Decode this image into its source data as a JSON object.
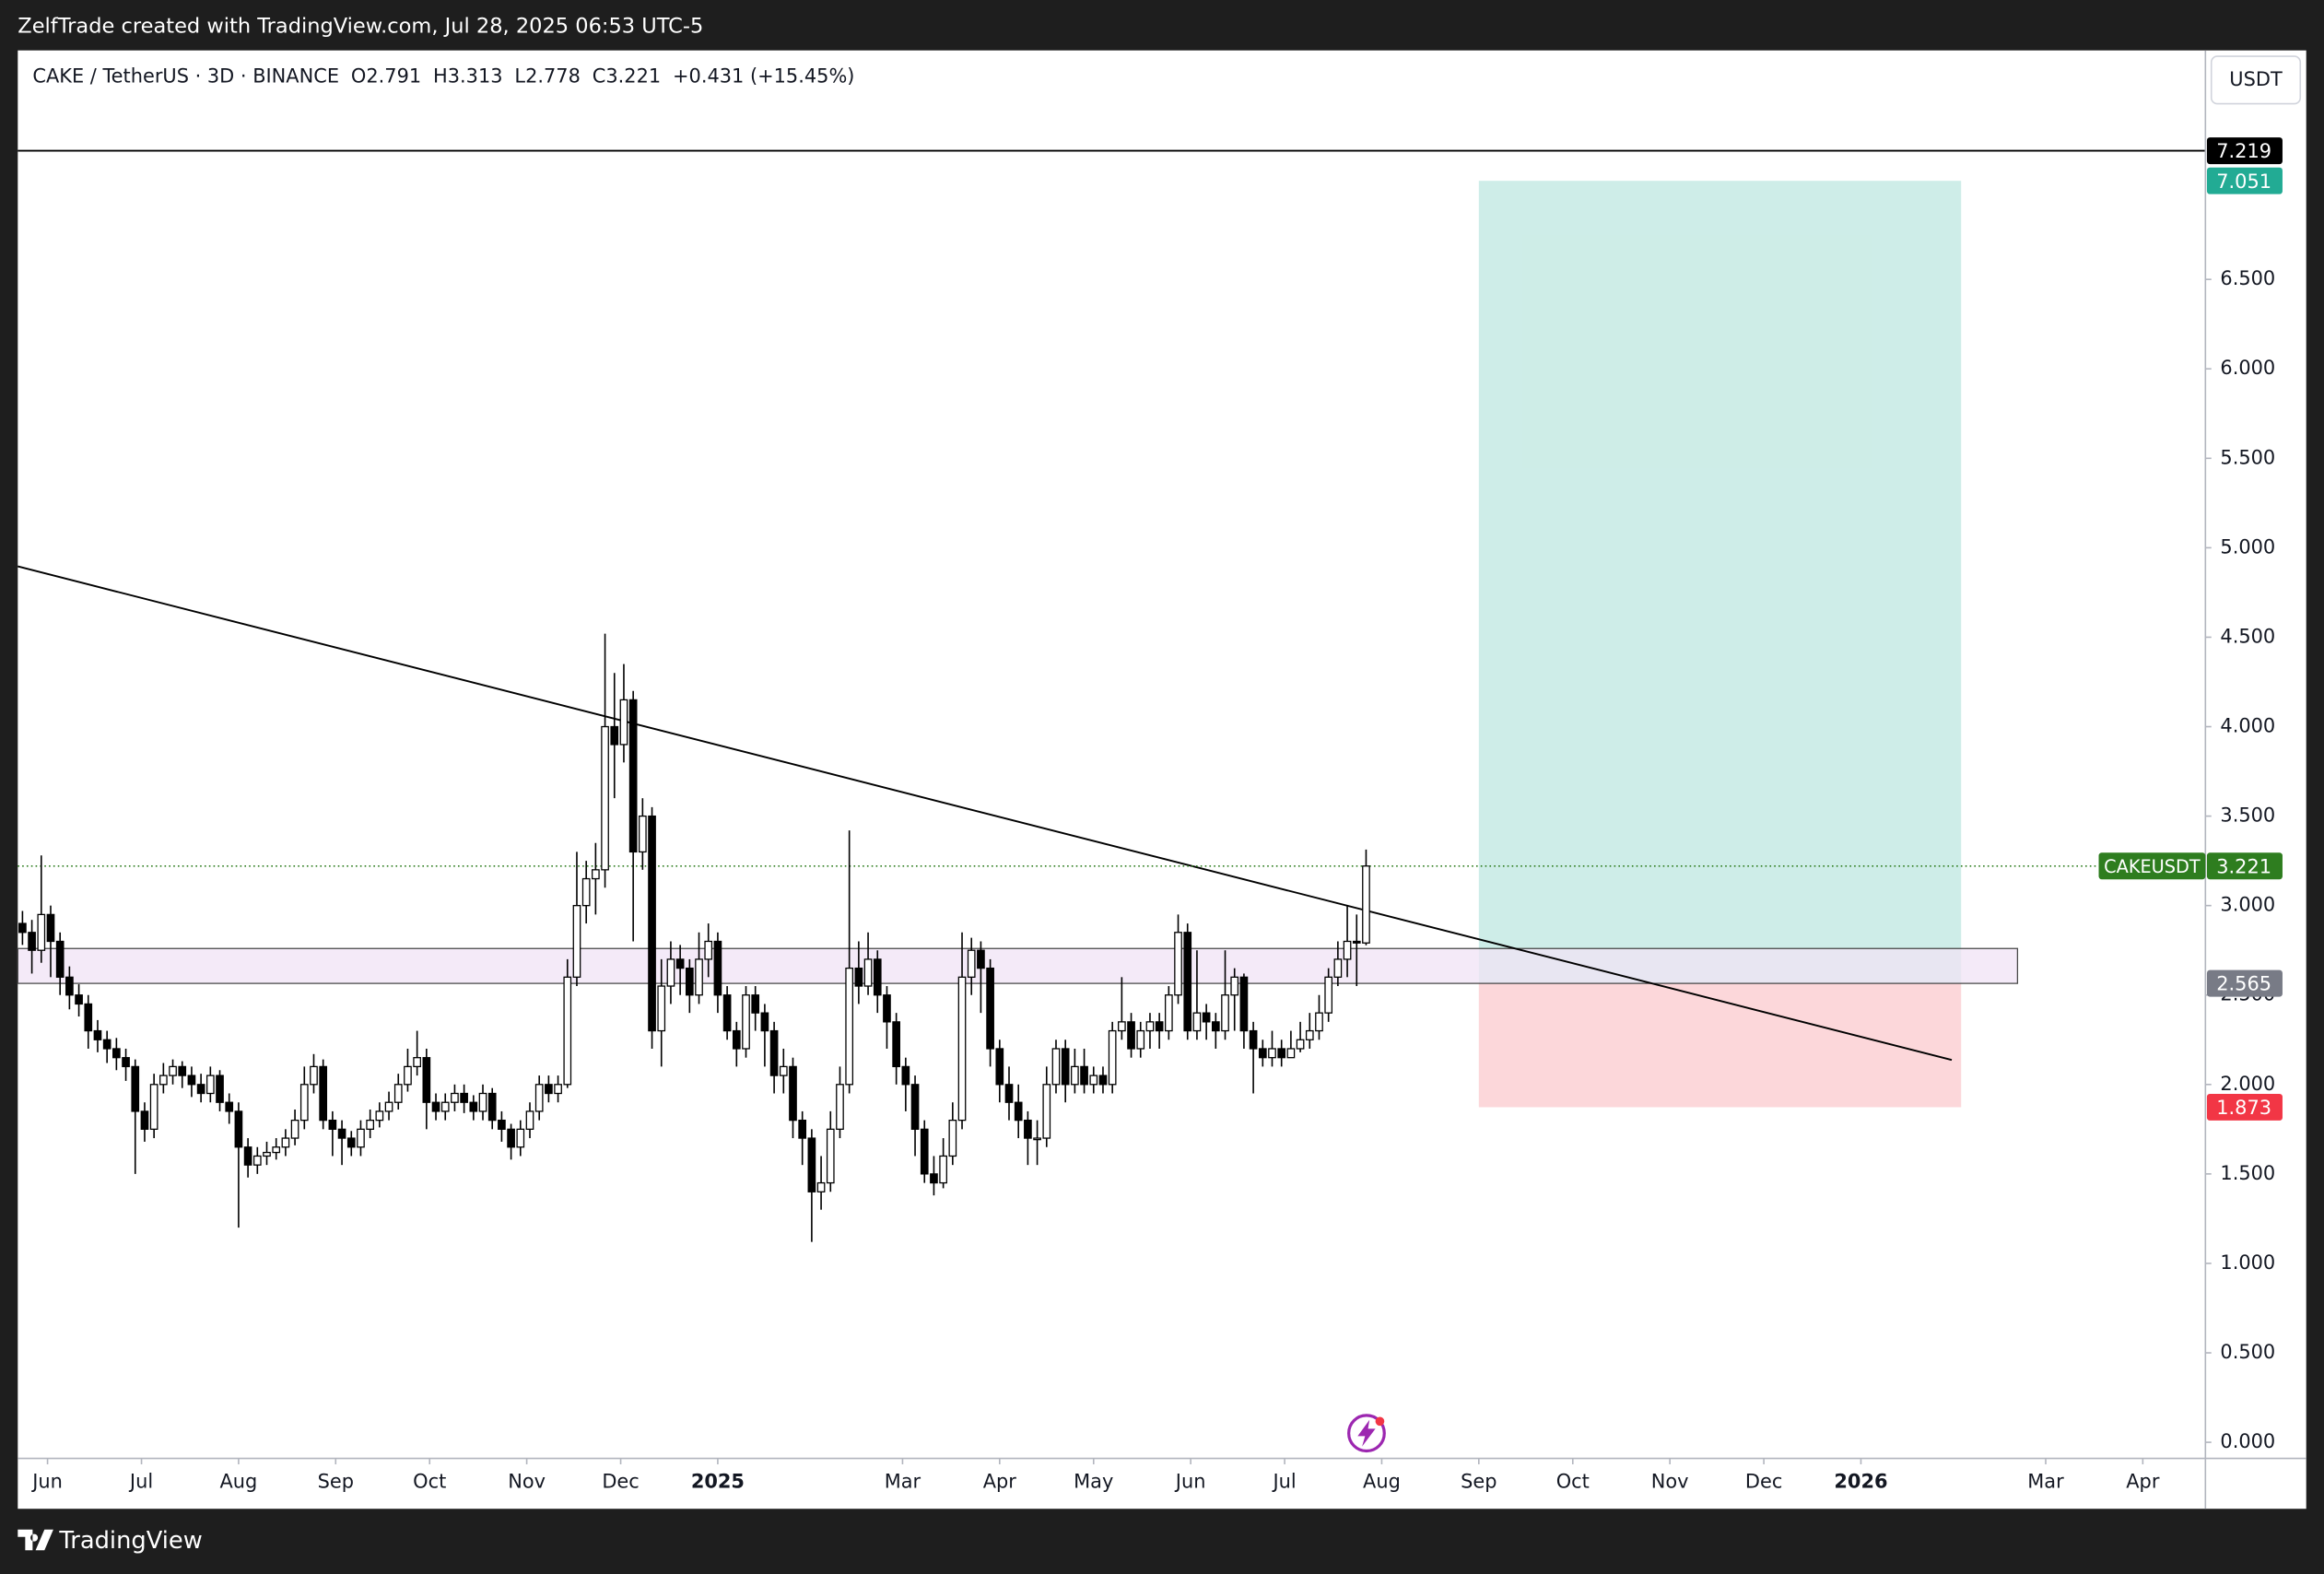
{
  "top_bar": "ZelfTrade created with TradingView.com, Jul 28, 2025 06:53 UTC-5",
  "footer": "TradingView",
  "chart_data": {
    "type": "candlestick",
    "title": "CAKE / TetherUS · 3D · BINANCE",
    "ohlc_letters": [
      "O",
      "H",
      "L",
      "C"
    ],
    "change_label": "+0.431 (+15.45%)",
    "currency": "USDT",
    "up_color": "#ffffff",
    "down_color": "#000000",
    "wick_color": "#000000",
    "x": [
      -8,
      -5,
      -2,
      1,
      4,
      7,
      10,
      13,
      16,
      19,
      22,
      25,
      28,
      31,
      34,
      37,
      40,
      43,
      46,
      49,
      52,
      55,
      58,
      61,
      64,
      67,
      70,
      73,
      76,
      79,
      82,
      85,
      88,
      91,
      94,
      97,
      100,
      103,
      106,
      109,
      112,
      115,
      118,
      121,
      124,
      127,
      130,
      133,
      136,
      139,
      142,
      145,
      148,
      151,
      154,
      157,
      160,
      163,
      166,
      169,
      172,
      175,
      178,
      181,
      184,
      187,
      190,
      193,
      196,
      199,
      202,
      205,
      208,
      211,
      214,
      217,
      220,
      223,
      226,
      229,
      232,
      235,
      238,
      241,
      244,
      247,
      250,
      253,
      256,
      259,
      262,
      265,
      268,
      271,
      274,
      277,
      280,
      283,
      286,
      289,
      292,
      295,
      298,
      301,
      304,
      307,
      310,
      313,
      316,
      319,
      322,
      325,
      328,
      331,
      334,
      337,
      340,
      343,
      346,
      349,
      352,
      355,
      358,
      361,
      364,
      367,
      370,
      373,
      376,
      379,
      382,
      385,
      388,
      391,
      394,
      397,
      400,
      403,
      406,
      409,
      412,
      415,
      418,
      421
    ],
    "open": [
      2.9,
      2.85,
      2.75,
      2.95,
      2.8,
      2.6,
      2.5,
      2.45,
      2.3,
      2.25,
      2.2,
      2.15,
      2.1,
      1.85,
      1.75,
      2.0,
      2.05,
      2.1,
      2.05,
      2.0,
      1.95,
      2.05,
      1.9,
      1.85,
      1.65,
      1.55,
      1.6,
      1.62,
      1.65,
      1.7,
      1.8,
      2.0,
      2.1,
      1.8,
      1.75,
      1.7,
      1.65,
      1.75,
      1.8,
      1.85,
      1.9,
      2.0,
      2.1,
      2.15,
      1.9,
      1.85,
      1.9,
      1.95,
      1.9,
      1.85,
      1.95,
      1.8,
      1.75,
      1.65,
      1.75,
      1.85,
      2.0,
      1.95,
      2.0,
      2.6,
      3.0,
      3.15,
      3.2,
      4.0,
      3.9,
      4.15,
      3.3,
      3.5,
      2.3,
      2.55,
      2.7,
      2.65,
      2.5,
      2.7,
      2.8,
      2.5,
      2.3,
      2.2,
      2.5,
      2.4,
      2.3,
      2.05,
      2.1,
      1.8,
      1.7,
      1.4,
      1.45,
      1.75,
      2.0,
      2.65,
      2.55,
      2.7,
      2.5,
      2.35,
      2.1,
      2.0,
      1.75,
      1.5,
      1.45,
      1.6,
      1.8,
      2.6,
      2.75,
      2.65,
      2.2,
      2.0,
      1.9,
      1.8,
      1.7,
      1.7,
      2.0,
      2.2,
      2.0,
      2.1,
      2.0,
      2.05,
      2.0,
      2.3,
      2.35,
      2.2,
      2.3,
      2.35,
      2.3,
      2.5,
      2.85,
      2.3,
      2.4,
      2.35,
      2.3,
      2.5,
      2.6,
      2.3,
      2.2,
      2.15,
      2.2,
      2.15,
      2.2,
      2.25,
      2.3,
      2.4,
      2.6,
      2.7,
      2.8,
      2.791
    ],
    "high": [
      2.97,
      2.92,
      3.28,
      3.0,
      2.85,
      2.66,
      2.56,
      2.5,
      2.36,
      2.3,
      2.26,
      2.2,
      2.14,
      1.9,
      2.06,
      2.12,
      2.14,
      2.13,
      2.1,
      2.06,
      2.1,
      2.08,
      1.95,
      1.9,
      1.7,
      1.65,
      1.68,
      1.7,
      1.75,
      1.86,
      2.1,
      2.17,
      2.14,
      1.85,
      1.8,
      1.74,
      1.8,
      1.86,
      1.9,
      1.96,
      2.06,
      2.2,
      2.3,
      2.2,
      1.95,
      1.95,
      2.0,
      2.0,
      1.94,
      2.0,
      1.98,
      1.85,
      1.78,
      1.8,
      1.9,
      2.05,
      2.05,
      2.05,
      2.7,
      3.3,
      3.25,
      3.35,
      4.52,
      4.3,
      4.35,
      4.2,
      3.6,
      3.55,
      2.7,
      2.8,
      2.78,
      2.7,
      2.85,
      2.9,
      2.85,
      2.55,
      2.35,
      2.55,
      2.55,
      2.45,
      2.35,
      2.2,
      2.15,
      1.85,
      1.75,
      1.6,
      1.85,
      2.1,
      3.42,
      2.8,
      2.85,
      2.75,
      2.55,
      2.4,
      2.15,
      2.05,
      1.8,
      1.6,
      1.7,
      1.9,
      2.85,
      2.82,
      2.8,
      2.7,
      2.25,
      2.1,
      2.0,
      1.85,
      1.8,
      2.1,
      2.25,
      2.25,
      2.2,
      2.2,
      2.1,
      2.1,
      2.35,
      2.6,
      2.4,
      2.35,
      2.4,
      2.4,
      2.55,
      2.95,
      2.9,
      2.75,
      2.45,
      2.4,
      2.75,
      2.65,
      2.62,
      2.35,
      2.25,
      2.3,
      2.25,
      2.3,
      2.35,
      2.4,
      2.5,
      2.65,
      2.8,
      3.0,
      2.95,
      3.313
    ],
    "low": [
      2.78,
      2.62,
      2.68,
      2.6,
      2.5,
      2.42,
      2.38,
      2.2,
      2.18,
      2.12,
      2.08,
      2.02,
      1.5,
      1.68,
      1.7,
      1.95,
      2.0,
      1.98,
      1.93,
      1.9,
      1.9,
      1.85,
      1.78,
      1.2,
      1.48,
      1.5,
      1.55,
      1.58,
      1.6,
      1.66,
      1.75,
      1.95,
      1.75,
      1.6,
      1.55,
      1.6,
      1.6,
      1.7,
      1.76,
      1.8,
      1.86,
      1.96,
      2.05,
      1.75,
      1.8,
      1.8,
      1.85,
      1.84,
      1.8,
      1.8,
      1.75,
      1.68,
      1.58,
      1.6,
      1.7,
      1.8,
      1.9,
      1.9,
      1.98,
      2.55,
      2.9,
      2.95,
      3.1,
      3.6,
      3.8,
      2.8,
      3.2,
      2.2,
      2.1,
      2.45,
      2.5,
      2.4,
      2.45,
      2.6,
      2.4,
      2.25,
      2.1,
      2.15,
      2.3,
      2.1,
      1.95,
      1.95,
      1.7,
      1.55,
      1.12,
      1.3,
      1.4,
      1.7,
      1.95,
      2.45,
      2.5,
      2.4,
      2.2,
      2.0,
      1.85,
      1.6,
      1.45,
      1.38,
      1.42,
      1.55,
      1.75,
      2.5,
      2.4,
      2.1,
      1.9,
      1.8,
      1.7,
      1.55,
      1.55,
      1.65,
      1.95,
      1.9,
      1.95,
      1.95,
      1.95,
      1.95,
      1.95,
      2.25,
      2.15,
      2.15,
      2.2,
      2.2,
      2.25,
      2.45,
      2.25,
      2.25,
      2.25,
      2.2,
      2.25,
      2.3,
      2.2,
      1.95,
      2.1,
      2.1,
      2.1,
      2.15,
      2.18,
      2.2,
      2.25,
      2.35,
      2.55,
      2.6,
      2.55,
      2.778
    ],
    "close": [
      2.85,
      2.75,
      2.95,
      2.8,
      2.6,
      2.5,
      2.45,
      2.3,
      2.25,
      2.2,
      2.15,
      2.1,
      1.85,
      1.75,
      2.0,
      2.05,
      2.1,
      2.05,
      2.0,
      1.95,
      2.05,
      1.9,
      1.85,
      1.65,
      1.55,
      1.6,
      1.62,
      1.65,
      1.7,
      1.8,
      2.0,
      2.1,
      1.8,
      1.75,
      1.7,
      1.65,
      1.75,
      1.8,
      1.85,
      1.9,
      2.0,
      2.1,
      2.15,
      1.9,
      1.85,
      1.9,
      1.95,
      1.9,
      1.85,
      1.95,
      1.8,
      1.75,
      1.65,
      1.75,
      1.85,
      2.0,
      1.95,
      2.0,
      2.6,
      3.0,
      3.15,
      3.2,
      4.0,
      3.9,
      4.15,
      3.3,
      3.5,
      2.3,
      2.55,
      2.7,
      2.65,
      2.5,
      2.7,
      2.8,
      2.5,
      2.3,
      2.2,
      2.5,
      2.4,
      2.3,
      2.05,
      2.1,
      1.8,
      1.7,
      1.4,
      1.45,
      1.75,
      2.0,
      2.65,
      2.55,
      2.7,
      2.5,
      2.35,
      2.1,
      2.0,
      1.75,
      1.5,
      1.45,
      1.6,
      1.8,
      2.6,
      2.75,
      2.65,
      2.2,
      2.0,
      1.9,
      1.8,
      1.7,
      1.7,
      2.0,
      2.2,
      2.0,
      2.1,
      2.0,
      2.05,
      2.0,
      2.3,
      2.35,
      2.2,
      2.3,
      2.35,
      2.3,
      2.5,
      2.85,
      2.3,
      2.4,
      2.35,
      2.3,
      2.5,
      2.6,
      2.3,
      2.2,
      2.15,
      2.2,
      2.15,
      2.2,
      2.25,
      2.3,
      2.4,
      2.6,
      2.7,
      2.8,
      2.791,
      3.221
    ],
    "xlim": [
      -9.5,
      689
    ],
    "xticks": [
      {
        "value": 0,
        "label": "Jun"
      },
      {
        "value": 30,
        "label": "Jul"
      },
      {
        "value": 61,
        "label": "Aug"
      },
      {
        "value": 92,
        "label": "Sep"
      },
      {
        "value": 122,
        "label": "Oct"
      },
      {
        "value": 153,
        "label": "Nov"
      },
      {
        "value": 183,
        "label": "Dec"
      },
      {
        "value": 214,
        "label": "2025"
      },
      {
        "value": 273,
        "label": "Mar"
      },
      {
        "value": 304,
        "label": "Apr"
      },
      {
        "value": 334,
        "label": "May"
      },
      {
        "value": 365,
        "label": "Jun"
      },
      {
        "value": 395,
        "label": "Jul"
      },
      {
        "value": 426,
        "label": "Aug"
      },
      {
        "value": 457,
        "label": "Sep"
      },
      {
        "value": 487,
        "label": "Oct"
      },
      {
        "value": 518,
        "label": "Nov"
      },
      {
        "value": 548,
        "label": "Dec"
      },
      {
        "value": 579,
        "label": "2026"
      },
      {
        "value": 638,
        "label": "Mar"
      },
      {
        "value": 669,
        "label": "Apr"
      }
    ],
    "ylim": [
      -0.09,
      7.78
    ],
    "yticks": [
      {
        "value": 0,
        "label": "0.000"
      },
      {
        "value": 0.5,
        "label": "0.500"
      },
      {
        "value": 1,
        "label": "1.000"
      },
      {
        "value": 1.5,
        "label": "1.500"
      },
      {
        "value": 2,
        "label": "2.000"
      },
      {
        "value": 2.5,
        "label": "2.500"
      },
      {
        "value": 3,
        "label": "3.000"
      },
      {
        "value": 3.5,
        "label": "3.500"
      },
      {
        "value": 4,
        "label": "4.000"
      },
      {
        "value": 4.5,
        "label": "4.500"
      },
      {
        "value": 5,
        "label": "5.000"
      },
      {
        "value": 5.5,
        "label": "5.500"
      },
      {
        "value": 6,
        "label": "6.000"
      },
      {
        "value": 6.5,
        "label": "6.500"
      }
    ],
    "grid": false,
    "last_price": {
      "name": "CAKEUSDT",
      "color": "#2e7d1f"
    },
    "hline": {
      "value": 7.219,
      "color": "#000000"
    },
    "trendline": {
      "x": [
        -9.5,
        608
      ],
      "y": [
        4.896,
        2.137
      ],
      "color": "#000000"
    },
    "zone": {
      "x": [
        -9.5,
        629
      ],
      "y": [
        2.565,
        2.76
      ],
      "color": "#f0e3f5"
    },
    "position": {
      "x": [
        457,
        611
      ],
      "entry": 2.565,
      "target": 7.051,
      "stop": 1.873,
      "target_color": "#22ab94",
      "stop_color": "#f23645",
      "entry_color": "#787b86"
    }
  }
}
